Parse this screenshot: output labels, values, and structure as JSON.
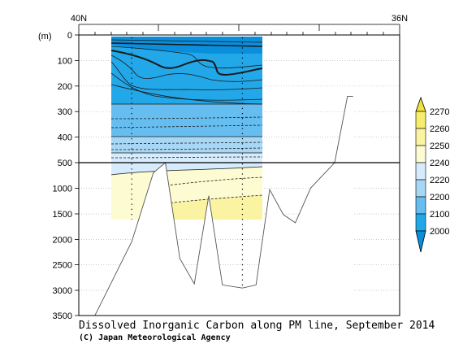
{
  "chart_data": {
    "type": "contour-section",
    "title": "Dissolved Inorganic Carbon along PM line, September 2014",
    "credit": "(C) Japan Meteorological Agency",
    "x_axis": {
      "left_label": "40N",
      "right_label": "36N",
      "xlim": [
        40,
        36
      ]
    },
    "y_axis": {
      "unit_label": "(m)",
      "upper_ticks": [
        "0",
        "100",
        "200",
        "300",
        "400",
        "500"
      ],
      "lower_ticks": [
        "1000",
        "1500",
        "2000",
        "2500",
        "3000",
        "3500"
      ],
      "upper_range": [
        0,
        500
      ],
      "lower_range": [
        500,
        3500
      ]
    },
    "legend": {
      "ticks": [
        "2270",
        "2260",
        "2250",
        "2240",
        "2220",
        "2200",
        "2100",
        "2000"
      ],
      "colors": [
        "#f2e23a",
        "#f6ec6e",
        "#faf3a2",
        "#fdfbd2",
        "#d6ebfb",
        "#a8d7f5",
        "#66bdf0",
        "#22a7e8",
        "#0a8fdc"
      ]
    },
    "bathymetry_depth": [
      [
        39.8,
        3500
      ],
      [
        39.34,
        2050
      ],
      [
        39.07,
        700
      ],
      [
        38.92,
        500
      ],
      [
        38.74,
        2380
      ],
      [
        38.56,
        2880
      ],
      [
        38.38,
        1150
      ],
      [
        38.21,
        2900
      ],
      [
        37.96,
        2960
      ],
      [
        37.79,
        2900
      ],
      [
        37.62,
        1030
      ],
      [
        37.45,
        1520
      ],
      [
        37.3,
        1680
      ],
      [
        37.11,
        1000
      ],
      [
        36.81,
        500
      ],
      [
        36.65,
        240
      ],
      [
        36.58,
        240
      ]
    ],
    "station_lat": [
      39.34,
      37.96
    ]
  }
}
